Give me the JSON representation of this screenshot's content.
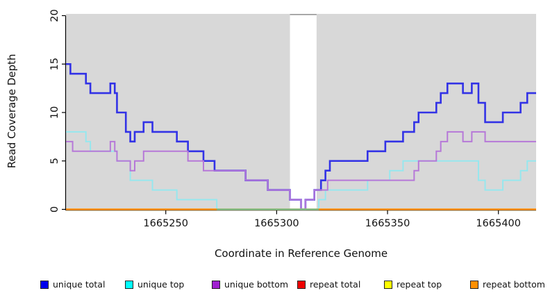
{
  "chart_data": {
    "type": "line",
    "line_style": "step",
    "title": "",
    "xlabel": "Coordinate in Reference Genome",
    "ylabel": "Read Coverage Depth",
    "xlim": [
      1665205,
      1665417
    ],
    "ylim": [
      0,
      20
    ],
    "x_ticks": [
      1665250,
      1665300,
      1665350,
      1665400
    ],
    "y_ticks": [
      0,
      5,
      10,
      15,
      20
    ],
    "grid": false,
    "legend_position": "bottom",
    "plot_bg_color": "#d8d8d8",
    "gap_region": {
      "start": 1665306,
      "end": 1665318,
      "fill": "#ffffff",
      "top_border": "#999999"
    },
    "overlap_blend": {
      "note": "unique-top at depth 0 overlapping repeat-bottom renders greenish",
      "color": "#7ac492",
      "start": 1665273,
      "end": 1665319
    },
    "series": [
      {
        "name": "unique total",
        "color": "#3232e6",
        "legend_color": "#0000ee",
        "points": [
          [
            1665205,
            15
          ],
          [
            1665207,
            14
          ],
          [
            1665214,
            13
          ],
          [
            1665216,
            12
          ],
          [
            1665225,
            13
          ],
          [
            1665227,
            12
          ],
          [
            1665228,
            10
          ],
          [
            1665232,
            8
          ],
          [
            1665234,
            7
          ],
          [
            1665236,
            8
          ],
          [
            1665240,
            9
          ],
          [
            1665244,
            8
          ],
          [
            1665255,
            7
          ],
          [
            1665260,
            6
          ],
          [
            1665267,
            5
          ],
          [
            1665272,
            4
          ],
          [
            1665286,
            3
          ],
          [
            1665296,
            2
          ],
          [
            1665306,
            1
          ],
          [
            1665311,
            0
          ],
          [
            1665313,
            1
          ],
          [
            1665317,
            2
          ],
          [
            1665320,
            3
          ],
          [
            1665322,
            4
          ],
          [
            1665324,
            5
          ],
          [
            1665341,
            6
          ],
          [
            1665349,
            7
          ],
          [
            1665357,
            8
          ],
          [
            1665362,
            9
          ],
          [
            1665364,
            10
          ],
          [
            1665372,
            11
          ],
          [
            1665374,
            12
          ],
          [
            1665377,
            13
          ],
          [
            1665384,
            12
          ],
          [
            1665388,
            13
          ],
          [
            1665391,
            11
          ],
          [
            1665394,
            9
          ],
          [
            1665402,
            10
          ],
          [
            1665410,
            11
          ],
          [
            1665413,
            12
          ]
        ]
      },
      {
        "name": "unique top",
        "color": "#96e7ee",
        "legend_color": "#00ffff",
        "points": [
          [
            1665205,
            8
          ],
          [
            1665214,
            7
          ],
          [
            1665216,
            6
          ],
          [
            1665228,
            5
          ],
          [
            1665234,
            3
          ],
          [
            1665244,
            2
          ],
          [
            1665255,
            1
          ],
          [
            1665273,
            0
          ],
          [
            1665319,
            1
          ],
          [
            1665322,
            2
          ],
          [
            1665341,
            3
          ],
          [
            1665351,
            4
          ],
          [
            1665357,
            5
          ],
          [
            1665391,
            3
          ],
          [
            1665394,
            2
          ],
          [
            1665402,
            3
          ],
          [
            1665410,
            4
          ],
          [
            1665413,
            5
          ]
        ]
      },
      {
        "name": "unique bottom",
        "color": "#b678d8",
        "legend_color": "#a020d0",
        "points": [
          [
            1665205,
            7
          ],
          [
            1665208,
            6
          ],
          [
            1665225,
            7
          ],
          [
            1665227,
            6
          ],
          [
            1665228,
            5
          ],
          [
            1665234,
            4
          ],
          [
            1665236,
            5
          ],
          [
            1665240,
            6
          ],
          [
            1665260,
            5
          ],
          [
            1665267,
            4
          ],
          [
            1665286,
            3
          ],
          [
            1665296,
            2
          ],
          [
            1665306,
            1
          ],
          [
            1665311,
            0
          ],
          [
            1665313,
            1
          ],
          [
            1665317,
            2
          ],
          [
            1665323,
            3
          ],
          [
            1665362,
            4
          ],
          [
            1665364,
            5
          ],
          [
            1665372,
            6
          ],
          [
            1665374,
            7
          ],
          [
            1665377,
            8
          ],
          [
            1665384,
            7
          ],
          [
            1665388,
            8
          ],
          [
            1665394,
            7
          ]
        ]
      },
      {
        "name": "repeat total",
        "color": "#e60000",
        "legend_color": "#ee0000",
        "points": [
          [
            1665205,
            0
          ]
        ]
      },
      {
        "name": "repeat top",
        "color": "#ffff00",
        "legend_color": "#ffff00",
        "points": [
          [
            1665205,
            0
          ]
        ]
      },
      {
        "name": "repeat bottom",
        "color": "#ff9000",
        "legend_color": "#ff9000",
        "points": [
          [
            1665205,
            0
          ]
        ]
      }
    ]
  }
}
